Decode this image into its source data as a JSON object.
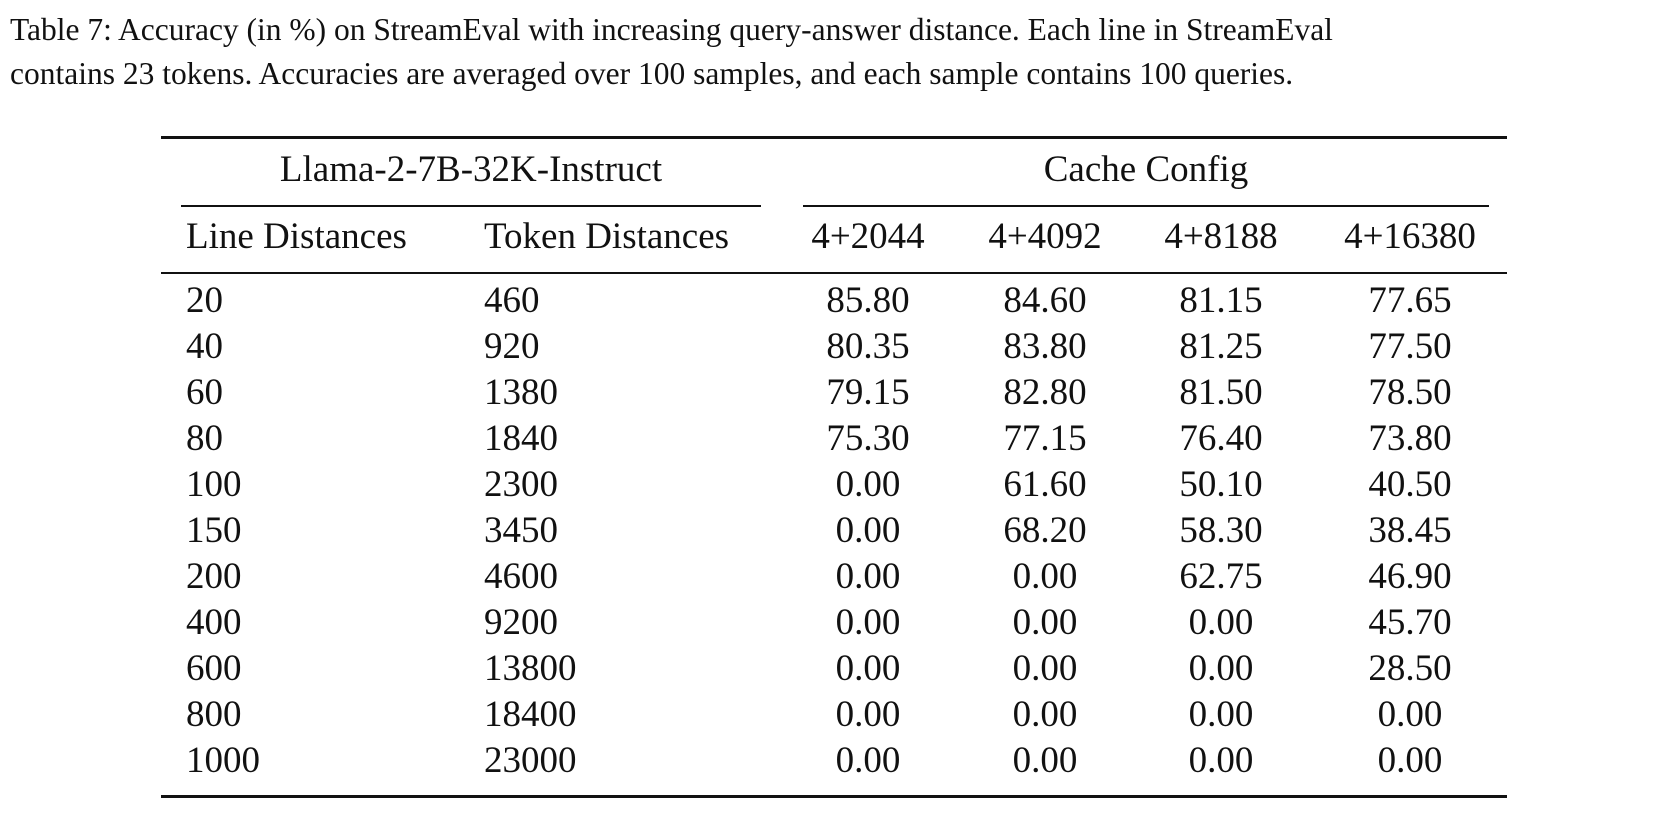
{
  "caption": {
    "line1": "Table 7:  Accuracy (in %) on StreamEval with increasing query-answer distance.  Each line in StreamEval",
    "line2": "contains 23 tokens. Accuracies are averaged over 100 samples, and each sample contains 100 queries."
  },
  "table": {
    "group_headers": {
      "left": "Llama-2-7B-32K-Instruct",
      "right": "Cache Config"
    },
    "columns": [
      "Line Distances",
      "Token Distances",
      "4+2044",
      "4+4092",
      "4+8188",
      "4+16380"
    ],
    "rows": [
      [
        "20",
        "460",
        "85.80",
        "84.60",
        "81.15",
        "77.65"
      ],
      [
        "40",
        "920",
        "80.35",
        "83.80",
        "81.25",
        "77.50"
      ],
      [
        "60",
        "1380",
        "79.15",
        "82.80",
        "81.50",
        "78.50"
      ],
      [
        "80",
        "1840",
        "75.30",
        "77.15",
        "76.40",
        "73.80"
      ],
      [
        "100",
        "2300",
        "0.00",
        "61.60",
        "50.10",
        "40.50"
      ],
      [
        "150",
        "3450",
        "0.00",
        "68.20",
        "58.30",
        "38.45"
      ],
      [
        "200",
        "4600",
        "0.00",
        "0.00",
        "62.75",
        "46.90"
      ],
      [
        "400",
        "9200",
        "0.00",
        "0.00",
        "0.00",
        "45.70"
      ],
      [
        "600",
        "13800",
        "0.00",
        "0.00",
        "0.00",
        "28.50"
      ],
      [
        "800",
        "18400",
        "0.00",
        "0.00",
        "0.00",
        "0.00"
      ],
      [
        "1000",
        "23000",
        "0.00",
        "0.00",
        "0.00",
        "0.00"
      ]
    ]
  }
}
